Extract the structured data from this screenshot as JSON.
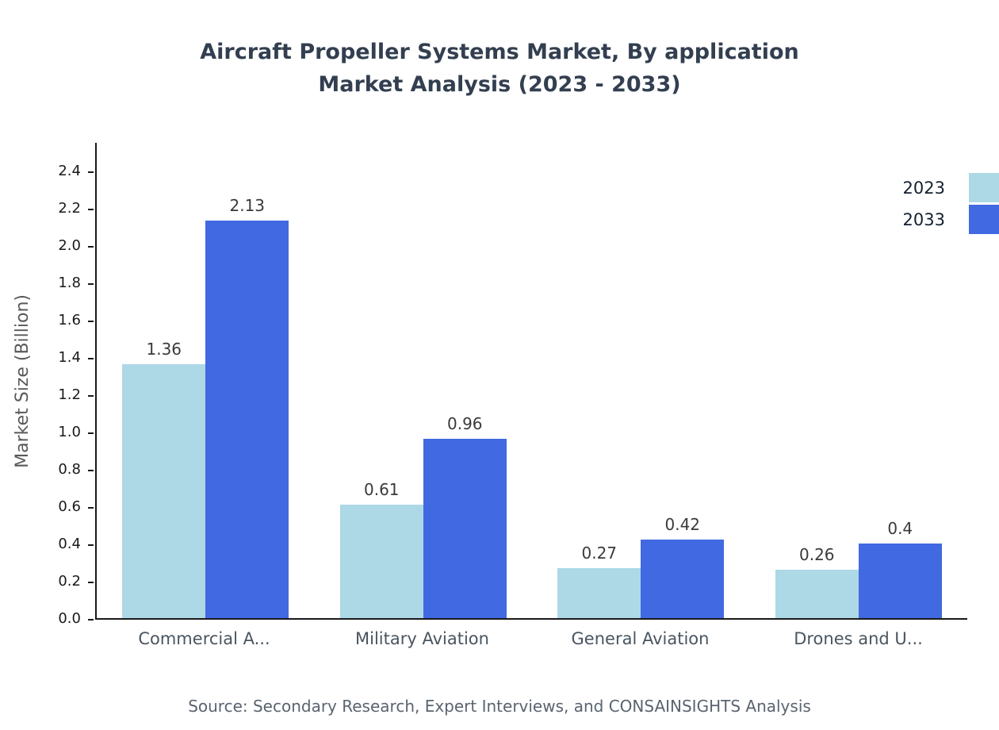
{
  "chart_data": {
    "type": "bar",
    "title": "Aircraft Propeller Systems Market, By application",
    "subtitle": "Market Analysis (2023 - 2033)",
    "ylabel": "Market Size (Billion)",
    "xlabel": "",
    "categories": [
      "Commercial A...",
      "Military Aviation",
      "General Aviation",
      "Drones and U..."
    ],
    "series": [
      {
        "name": "2023",
        "color": "#ADD8E6",
        "values": [
          1.36,
          0.61,
          0.27,
          0.26
        ]
      },
      {
        "name": "2033",
        "color": "#4169E1",
        "values": [
          2.13,
          0.96,
          0.42,
          0.4
        ]
      }
    ],
    "ylim": [
      0,
      2.4
    ],
    "yticks": [
      0.0,
      0.2,
      0.4,
      0.6,
      0.8,
      1.0,
      1.2,
      1.4,
      1.6,
      1.8,
      2.0,
      2.2,
      2.4
    ],
    "grid": false,
    "legend_position": "top-right"
  },
  "footer": {
    "source": "Source: Secondary Research, Expert Interviews, and CONSAINSIGHTS Analysis"
  }
}
